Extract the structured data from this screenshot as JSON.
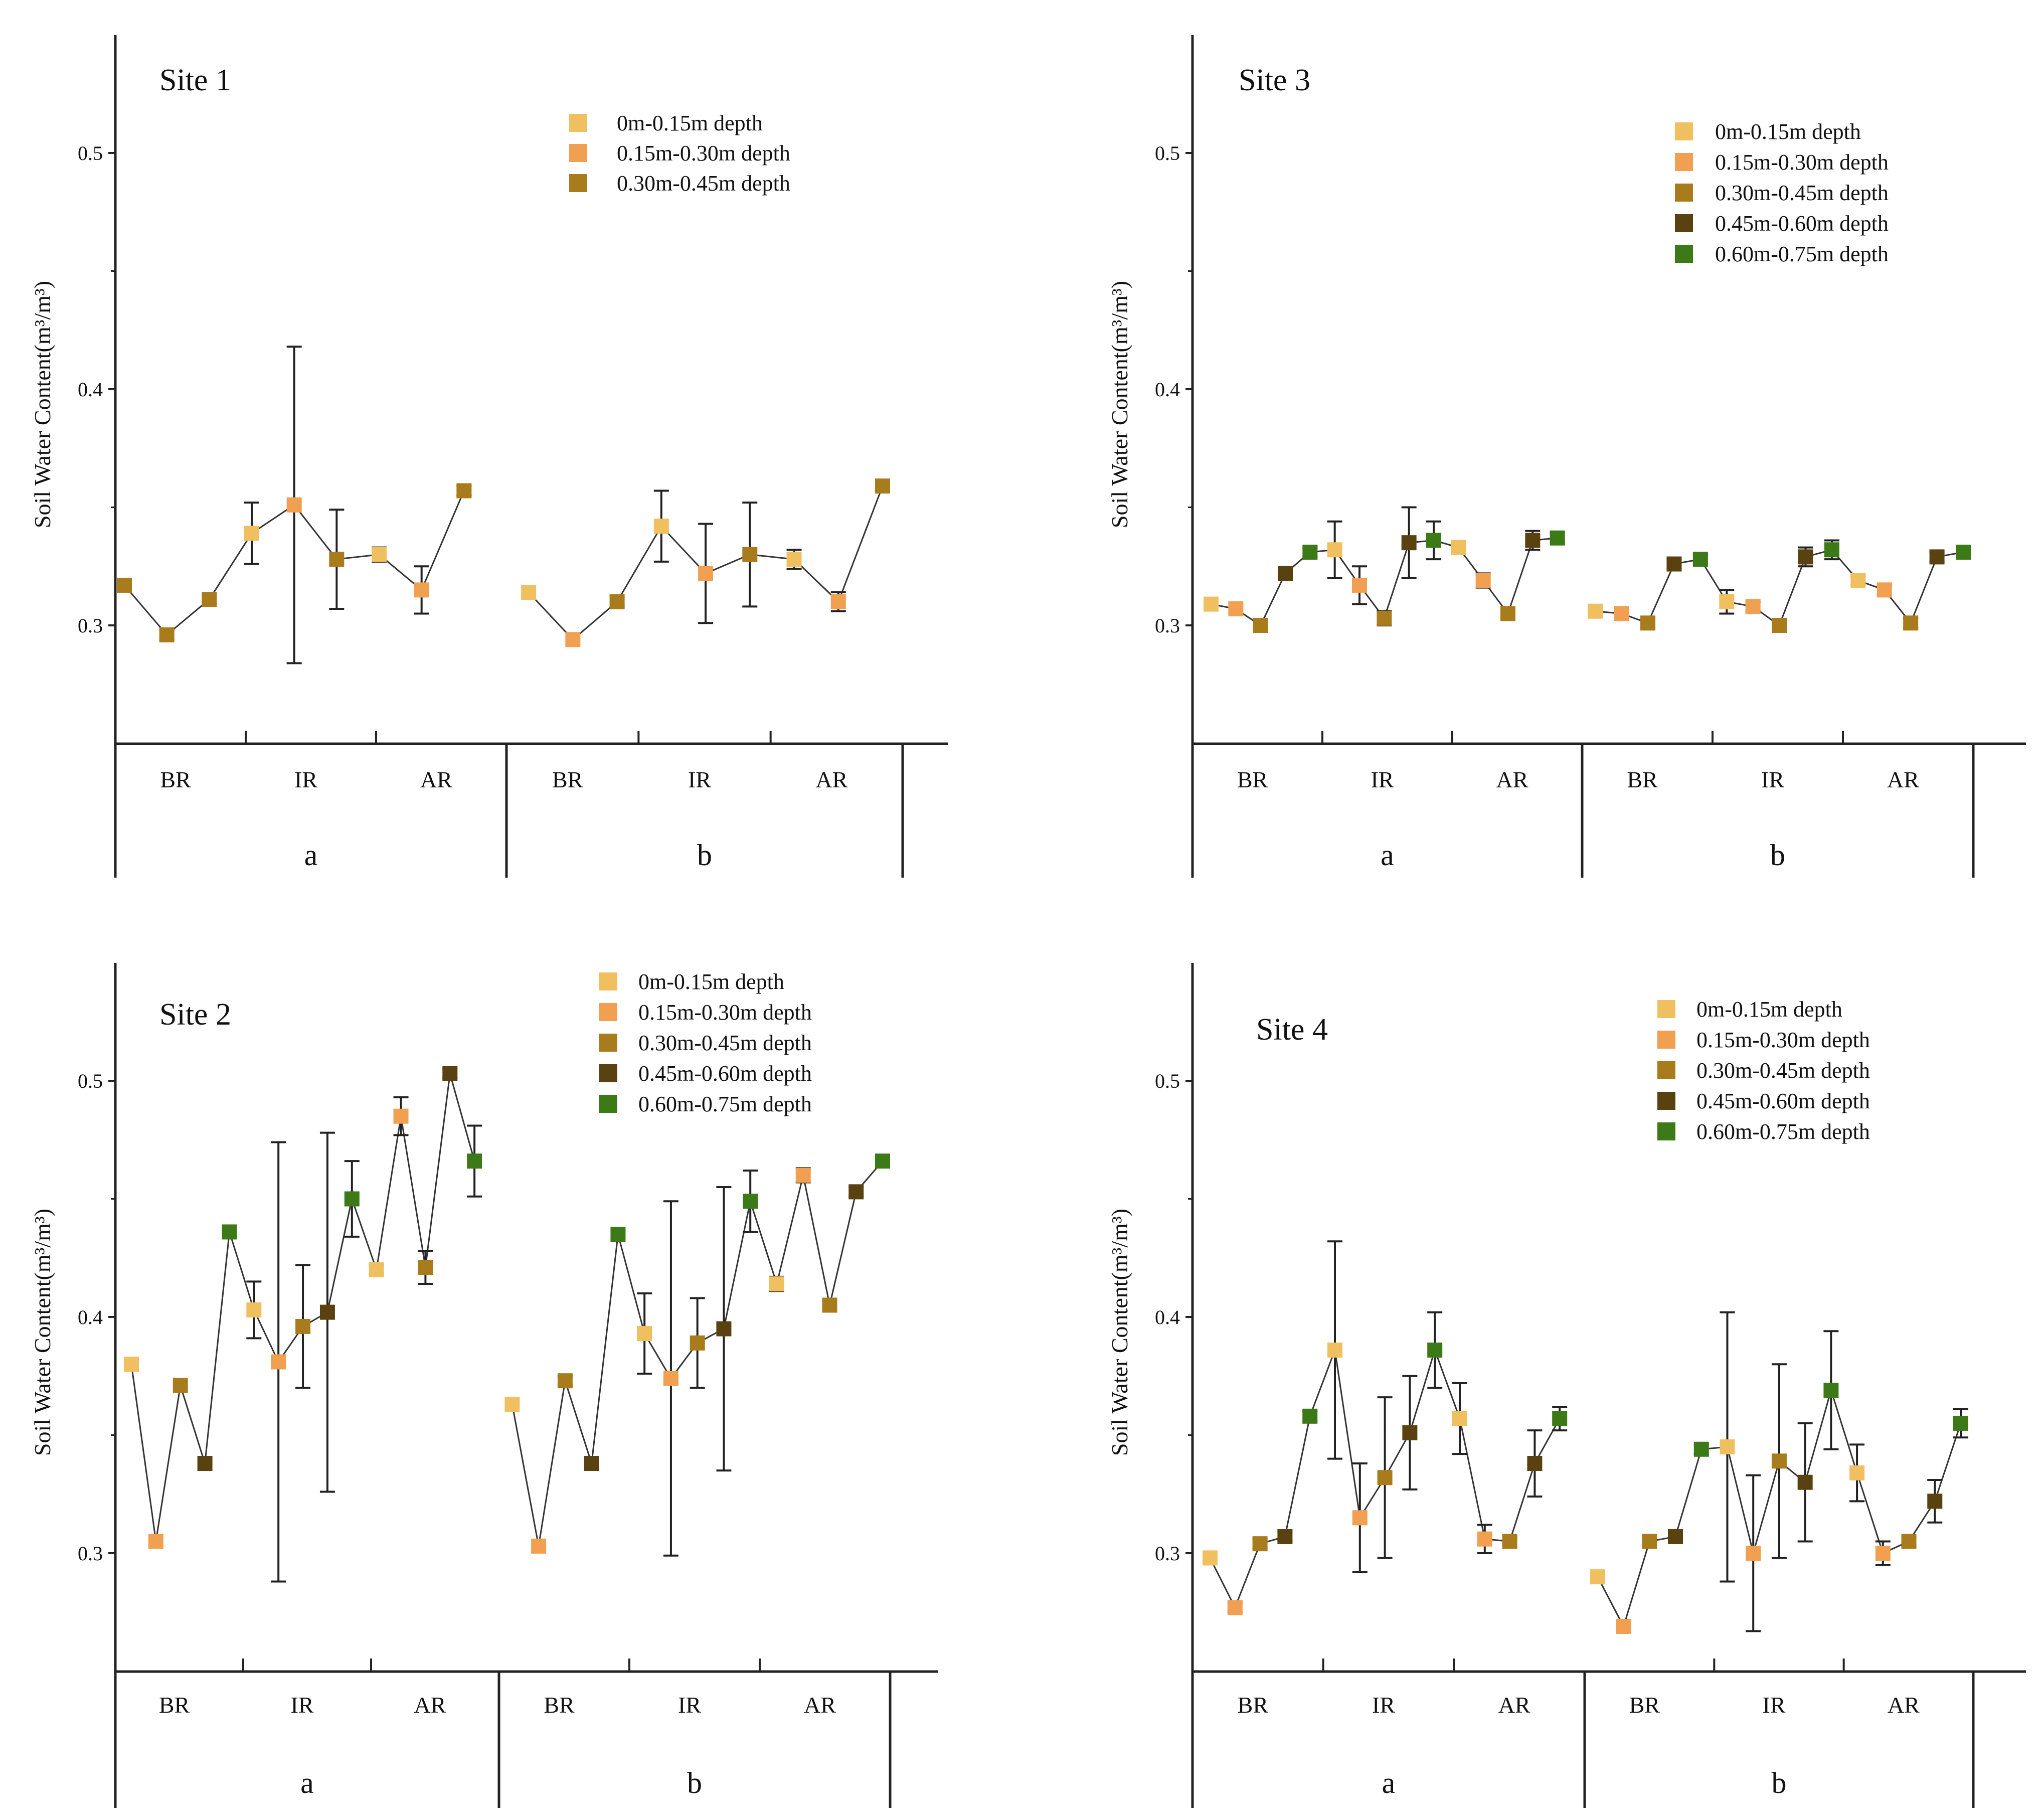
{
  "chart_data": [
    {
      "type": "line",
      "title": "Site 1",
      "ylabel": "Soil Water Content(m³/m³)",
      "ylim": [
        0.25,
        0.55
      ],
      "yticks": [
        0.3,
        0.4,
        0.5
      ],
      "ytick_labels": [
        "0.3",
        "0.4",
        "0.5"
      ],
      "group_labels": [
        "BR",
        "IR",
        "AR",
        "BR",
        "IR",
        "AR"
      ],
      "section_labels": [
        "a",
        "b"
      ],
      "legend": [
        "0m-0.15m depth",
        "0.15m-0.30m depth",
        "0.30m-0.45m depth"
      ],
      "colors": [
        "#f0c060",
        "#f0a050",
        "#a87c1c"
      ],
      "series": [
        {
          "name": "a",
          "points": [
            {
              "v": 0.317,
              "d": 2,
              "e": 0.002
            },
            {
              "v": 0.296,
              "d": 2,
              "e": 0.002
            },
            {
              "v": 0.311,
              "d": 2,
              "e": 0.002
            },
            {
              "v": 0.339,
              "d": 0,
              "e": 0.013
            },
            {
              "v": 0.351,
              "d": 1,
              "e": 0.067
            },
            {
              "v": 0.328,
              "d": 2,
              "e": 0.021
            },
            {
              "v": 0.33,
              "d": 0,
              "e": 0.003
            },
            {
              "v": 0.315,
              "d": 1,
              "e": 0.01
            },
            {
              "v": 0.357,
              "d": 2,
              "e": 0.002
            }
          ]
        },
        {
          "name": "b",
          "points": [
            {
              "v": 0.314,
              "d": 0,
              "e": 0
            },
            {
              "v": 0.294,
              "d": 1,
              "e": 0
            },
            {
              "v": 0.31,
              "d": 2,
              "e": 0.002
            },
            {
              "v": 0.342,
              "d": 0,
              "e": 0.015
            },
            {
              "v": 0.322,
              "d": 1,
              "e": 0.021
            },
            {
              "v": 0.33,
              "d": 2,
              "e": 0.022
            },
            {
              "v": 0.328,
              "d": 0,
              "e": 0.004
            },
            {
              "v": 0.31,
              "d": 1,
              "e": 0.004
            },
            {
              "v": 0.359,
              "d": 2,
              "e": 0.002
            }
          ]
        }
      ]
    },
    {
      "type": "line",
      "title": "Site 3",
      "ylabel": "Soil Water Content(m³/m³)",
      "ylim": [
        0.25,
        0.55
      ],
      "yticks": [
        0.3,
        0.4,
        0.5
      ],
      "ytick_labels": [
        "0.3",
        "0.4",
        "0.5"
      ],
      "group_labels": [
        "BR",
        "IR",
        "AR",
        "BR",
        "IR",
        "AR"
      ],
      "section_labels": [
        "a",
        "b"
      ],
      "legend": [
        "0m-0.15m depth",
        "0.15m-0.30m depth",
        "0.30m-0.45m depth",
        "0.45m-0.60m depth",
        "0.60m-0.75m depth"
      ],
      "colors": [
        "#f0c060",
        "#f0a050",
        "#a87c1c",
        "#5a4210",
        "#3c7a18"
      ],
      "series": [
        {
          "name": "a",
          "points": [
            {
              "v": 0.309,
              "d": 0,
              "e": 0
            },
            {
              "v": 0.307,
              "d": 1,
              "e": 0
            },
            {
              "v": 0.3,
              "d": 2,
              "e": 0.002
            },
            {
              "v": 0.322,
              "d": 3,
              "e": 0.002
            },
            {
              "v": 0.331,
              "d": 4,
              "e": 0.002
            },
            {
              "v": 0.332,
              "d": 0,
              "e": 0.012
            },
            {
              "v": 0.317,
              "d": 1,
              "e": 0.008
            },
            {
              "v": 0.303,
              "d": 2,
              "e": 0.003
            },
            {
              "v": 0.335,
              "d": 3,
              "e": 0.015
            },
            {
              "v": 0.336,
              "d": 4,
              "e": 0.008
            },
            {
              "v": 0.333,
              "d": 0,
              "e": 0.002
            },
            {
              "v": 0.319,
              "d": 1,
              "e": 0.003
            },
            {
              "v": 0.305,
              "d": 2,
              "e": 0.002
            },
            {
              "v": 0.336,
              "d": 3,
              "e": 0.004
            },
            {
              "v": 0.337,
              "d": 4,
              "e": 0.002
            }
          ]
        },
        {
          "name": "b",
          "points": [
            {
              "v": 0.306,
              "d": 0,
              "e": 0
            },
            {
              "v": 0.305,
              "d": 1,
              "e": 0.002
            },
            {
              "v": 0.301,
              "d": 2,
              "e": 0.002
            },
            {
              "v": 0.326,
              "d": 3,
              "e": 0.002
            },
            {
              "v": 0.328,
              "d": 4,
              "e": 0.002
            },
            {
              "v": 0.31,
              "d": 0,
              "e": 0.005
            },
            {
              "v": 0.308,
              "d": 1,
              "e": 0.002
            },
            {
              "v": 0.3,
              "d": 2,
              "e": 0.002
            },
            {
              "v": 0.329,
              "d": 3,
              "e": 0.004
            },
            {
              "v": 0.332,
              "d": 4,
              "e": 0.004
            },
            {
              "v": 0.319,
              "d": 0,
              "e": 0.002
            },
            {
              "v": 0.315,
              "d": 1,
              "e": 0.002
            },
            {
              "v": 0.301,
              "d": 2,
              "e": 0.002
            },
            {
              "v": 0.329,
              "d": 3,
              "e": 0.002
            },
            {
              "v": 0.331,
              "d": 4,
              "e": 0.002
            }
          ]
        }
      ]
    },
    {
      "type": "line",
      "title": "Site 2",
      "ylabel": "Soil Water Content(m³/m³)",
      "ylim": [
        0.25,
        0.55
      ],
      "yticks": [
        0.3,
        0.4,
        0.5
      ],
      "ytick_labels": [
        "0.3",
        "0.4",
        "0.5"
      ],
      "group_labels": [
        "BR",
        "IR",
        "AR",
        "BR",
        "IR",
        "AR"
      ],
      "section_labels": [
        "a",
        "b"
      ],
      "legend": [
        "0m-0.15m depth",
        "0.15m-0.30m depth",
        "0.30m-0.45m depth",
        "0.45m-0.60m depth",
        "0.60m-0.75m depth"
      ],
      "colors": [
        "#f0c060",
        "#f0a050",
        "#a87c1c",
        "#5a4210",
        "#3c7a18"
      ],
      "series": [
        {
          "name": "a",
          "points": [
            {
              "v": 0.38,
              "d": 0,
              "e": 0
            },
            {
              "v": 0.305,
              "d": 1,
              "e": 0
            },
            {
              "v": 0.371,
              "d": 2,
              "e": 0
            },
            {
              "v": 0.338,
              "d": 3,
              "e": 0
            },
            {
              "v": 0.436,
              "d": 4,
              "e": 0
            },
            {
              "v": 0.403,
              "d": 0,
              "e": 0.012
            },
            {
              "v": 0.381,
              "d": 1,
              "e": 0.093
            },
            {
              "v": 0.396,
              "d": 2,
              "e": 0.026
            },
            {
              "v": 0.402,
              "d": 3,
              "e": 0.076
            },
            {
              "v": 0.45,
              "d": 4,
              "e": 0.016
            },
            {
              "v": 0.42,
              "d": 0,
              "e": 0.002
            },
            {
              "v": 0.485,
              "d": 1,
              "e": 0.008
            },
            {
              "v": 0.421,
              "d": 2,
              "e": 0.007
            },
            {
              "v": 0.503,
              "d": 3,
              "e": 0.002
            },
            {
              "v": 0.466,
              "d": 4,
              "e": 0.015
            }
          ]
        },
        {
          "name": "b",
          "points": [
            {
              "v": 0.363,
              "d": 0,
              "e": 0
            },
            {
              "v": 0.303,
              "d": 1,
              "e": 0
            },
            {
              "v": 0.373,
              "d": 2,
              "e": 0.002
            },
            {
              "v": 0.338,
              "d": 3,
              "e": 0
            },
            {
              "v": 0.435,
              "d": 4,
              "e": 0
            },
            {
              "v": 0.393,
              "d": 0,
              "e": 0.017
            },
            {
              "v": 0.374,
              "d": 1,
              "e": 0.075
            },
            {
              "v": 0.389,
              "d": 2,
              "e": 0.019
            },
            {
              "v": 0.395,
              "d": 3,
              "e": 0.06
            },
            {
              "v": 0.449,
              "d": 4,
              "e": 0.013
            },
            {
              "v": 0.414,
              "d": 0,
              "e": 0.003
            },
            {
              "v": 0.46,
              "d": 1,
              "e": 0.003
            },
            {
              "v": 0.405,
              "d": 2,
              "e": 0.002
            },
            {
              "v": 0.453,
              "d": 3,
              "e": 0.002
            },
            {
              "v": 0.466,
              "d": 4,
              "e": 0.002
            }
          ]
        }
      ]
    },
    {
      "type": "line",
      "title": "Site 4",
      "ylabel": "Soil Water Content(m³/m³)",
      "ylim": [
        0.25,
        0.55
      ],
      "yticks": [
        0.3,
        0.4,
        0.5
      ],
      "ytick_labels": [
        "0.3",
        "0.4",
        "0.5"
      ],
      "group_labels": [
        "BR",
        "IR",
        "AR",
        "BR",
        "IR",
        "AR"
      ],
      "section_labels": [
        "a",
        "b"
      ],
      "legend": [
        "0m-0.15m depth",
        "0.15m-0.30m depth",
        "0.30m-0.45m depth",
        "0.45m-0.60m depth",
        "0.60m-0.75m depth"
      ],
      "colors": [
        "#f0c060",
        "#f0a050",
        "#a87c1c",
        "#5a4210",
        "#3c7a18"
      ],
      "series": [
        {
          "name": "a",
          "points": [
            {
              "v": 0.298,
              "d": 0,
              "e": 0.002
            },
            {
              "v": 0.277,
              "d": 1,
              "e": 0.002
            },
            {
              "v": 0.304,
              "d": 2,
              "e": 0.002
            },
            {
              "v": 0.307,
              "d": 3,
              "e": 0.002
            },
            {
              "v": 0.358,
              "d": 4,
              "e": 0.002
            },
            {
              "v": 0.386,
              "d": 0,
              "e": 0.046
            },
            {
              "v": 0.315,
              "d": 1,
              "e": 0.023
            },
            {
              "v": 0.332,
              "d": 2,
              "e": 0.034
            },
            {
              "v": 0.351,
              "d": 3,
              "e": 0.024
            },
            {
              "v": 0.386,
              "d": 4,
              "e": 0.016
            },
            {
              "v": 0.357,
              "d": 0,
              "e": 0.015
            },
            {
              "v": 0.306,
              "d": 1,
              "e": 0.006
            },
            {
              "v": 0.305,
              "d": 2,
              "e": 0.002
            },
            {
              "v": 0.338,
              "d": 3,
              "e": 0.014
            },
            {
              "v": 0.357,
              "d": 4,
              "e": 0.005
            }
          ]
        },
        {
          "name": "b",
          "points": [
            {
              "v": 0.29,
              "d": 0,
              "e": 0.002
            },
            {
              "v": 0.269,
              "d": 1,
              "e": 0.002
            },
            {
              "v": 0.305,
              "d": 2,
              "e": 0
            },
            {
              "v": 0.307,
              "d": 3,
              "e": 0.002
            },
            {
              "v": 0.344,
              "d": 4,
              "e": 0.002
            },
            {
              "v": 0.345,
              "d": 0,
              "e": 0.057
            },
            {
              "v": 0.3,
              "d": 1,
              "e": 0.033
            },
            {
              "v": 0.339,
              "d": 2,
              "e": 0.041
            },
            {
              "v": 0.33,
              "d": 3,
              "e": 0.025
            },
            {
              "v": 0.369,
              "d": 4,
              "e": 0.025
            },
            {
              "v": 0.334,
              "d": 0,
              "e": 0.012
            },
            {
              "v": 0.3,
              "d": 1,
              "e": 0.005
            },
            {
              "v": 0.305,
              "d": 2,
              "e": 0.002
            },
            {
              "v": 0.322,
              "d": 3,
              "e": 0.009
            },
            {
              "v": 0.355,
              "d": 4,
              "e": 0.006
            }
          ]
        }
      ]
    }
  ]
}
